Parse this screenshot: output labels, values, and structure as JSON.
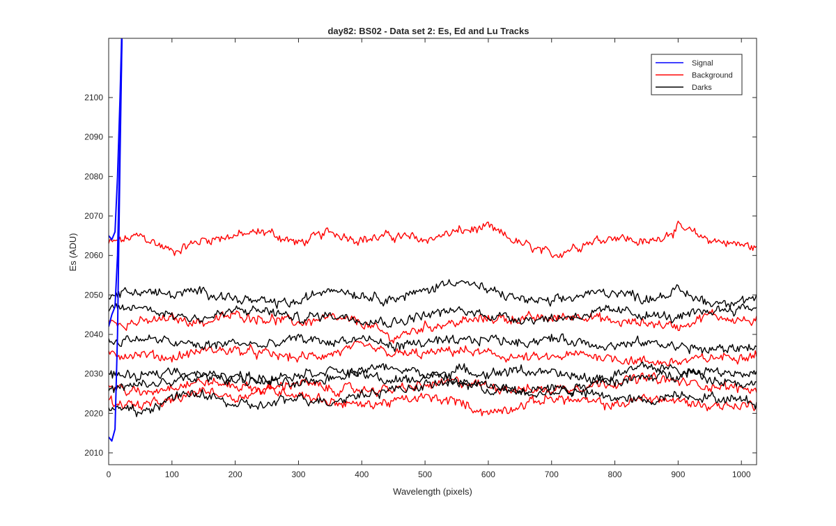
{
  "chart_data": {
    "type": "line",
    "title": "day82: BS02 - Data set 2: Es, Ed and Lu Tracks",
    "xlabel": "Wavelength (pixels)",
    "ylabel": "Es (ADU)",
    "xlim": [
      0,
      1024
    ],
    "ylim": [
      2007,
      2115
    ],
    "xticks": [
      0,
      100,
      200,
      300,
      400,
      500,
      600,
      700,
      800,
      900,
      1000
    ],
    "yticks": [
      2010,
      2020,
      2030,
      2040,
      2050,
      2060,
      2070,
      2080,
      2090,
      2100
    ],
    "grid": false,
    "legend": {
      "position": "top-right",
      "entries": [
        {
          "label": "Signal",
          "color": "#0000ff"
        },
        {
          "label": "Background",
          "color": "#ff0000"
        },
        {
          "label": "Darks",
          "color": "#000000"
        }
      ]
    },
    "series_groups": [
      {
        "name": "Signal",
        "color": "#0000ff",
        "tracks": [
          {
            "x": [
              0,
              5,
              10,
              14,
              18,
              22
            ],
            "y": [
              2014,
              2013,
              2016,
              2040,
              2085,
              2125
            ]
          },
          {
            "x": [
              0,
              5,
              10,
              14,
              18,
              22
            ],
            "y": [
              2042,
              2045,
              2047,
              2060,
              2090,
              2125
            ]
          },
          {
            "x": [
              0,
              5,
              10,
              14,
              18,
              22
            ],
            "y": [
              2065,
              2064,
              2066,
              2080,
              2100,
              2125
            ]
          }
        ]
      },
      {
        "name": "Background",
        "color": "#ff0000",
        "tracks": [
          {
            "x": [
              0,
              50,
              100,
              150,
              200,
              250,
              300,
              350,
              400,
              450,
              500,
              550,
              600,
              650,
              700,
              750,
              800,
              850,
              900,
              950,
              1024
            ],
            "y": [
              2063,
              2065,
              2061,
              2064,
              2065,
              2066,
              2063,
              2066,
              2064,
              2065,
              2064,
              2066,
              2067,
              2063,
              2060,
              2063,
              2065,
              2063,
              2067,
              2064,
              2062
            ]
          },
          {
            "x": [
              0,
              50,
              100,
              150,
              200,
              250,
              300,
              350,
              400,
              450,
              500,
              550,
              600,
              650,
              700,
              750,
              800,
              850,
              900,
              950,
              1024
            ],
            "y": [
              2043,
              2043,
              2044,
              2043,
              2045,
              2044,
              2043,
              2044,
              2043,
              2039,
              2042,
              2043,
              2044,
              2044,
              2044,
              2045,
              2043,
              2043,
              2042,
              2045,
              2043
            ]
          },
          {
            "x": [
              0,
              50,
              100,
              150,
              200,
              250,
              300,
              350,
              400,
              450,
              500,
              550,
              600,
              650,
              700,
              750,
              800,
              850,
              900,
              950,
              1024
            ],
            "y": [
              2035,
              2035,
              2034,
              2036,
              2036,
              2035,
              2034,
              2035,
              2037,
              2035,
              2035,
              2036,
              2035,
              2034,
              2034,
              2035,
              2034,
              2033,
              2033,
              2034,
              2035
            ]
          },
          {
            "x": [
              0,
              50,
              100,
              150,
              200,
              250,
              300,
              350,
              400,
              450,
              500,
              550,
              600,
              650,
              700,
              750,
              800,
              850,
              900,
              950,
              1024
            ],
            "y": [
              2027,
              2025,
              2027,
              2028,
              2027,
              2026,
              2028,
              2026,
              2026,
              2026,
              2027,
              2028,
              2027,
              2026,
              2026,
              2027,
              2028,
              2029,
              2028,
              2027,
              2026
            ]
          },
          {
            "x": [
              0,
              50,
              100,
              150,
              200,
              250,
              300,
              350,
              400,
              450,
              500,
              550,
              600,
              650,
              700,
              750,
              800,
              850,
              900,
              950,
              1024
            ],
            "y": [
              2023,
              2022,
              2023,
              2026,
              2024,
              2026,
              2025,
              2023,
              2022,
              2023,
              2024,
              2023,
              2020,
              2022,
              2024,
              2023,
              2022,
              2024,
              2023,
              2022,
              2022
            ]
          }
        ]
      },
      {
        "name": "Darks",
        "color": "#000000",
        "tracks": [
          {
            "x": [
              0,
              50,
              100,
              150,
              200,
              250,
              300,
              350,
              400,
              450,
              500,
              550,
              600,
              650,
              700,
              750,
              800,
              850,
              900,
              950,
              1024
            ],
            "y": [
              2050,
              2051,
              2050,
              2051,
              2049,
              2048,
              2048,
              2052,
              2050,
              2049,
              2051,
              2054,
              2051,
              2049,
              2048,
              2050,
              2051,
              2049,
              2051,
              2048,
              2049
            ]
          },
          {
            "x": [
              0,
              50,
              100,
              150,
              200,
              250,
              300,
              350,
              400,
              450,
              500,
              550,
              600,
              650,
              700,
              750,
              800,
              850,
              900,
              950,
              1024
            ],
            "y": [
              2046,
              2047,
              2045,
              2044,
              2046,
              2046,
              2044,
              2045,
              2044,
              2043,
              2045,
              2046,
              2045,
              2044,
              2044,
              2045,
              2046,
              2045,
              2044,
              2046,
              2047
            ]
          },
          {
            "x": [
              0,
              50,
              100,
              150,
              200,
              250,
              300,
              350,
              400,
              450,
              500,
              550,
              600,
              650,
              700,
              750,
              800,
              850,
              900,
              950,
              1024
            ],
            "y": [
              2038,
              2039,
              2038,
              2037,
              2038,
              2037,
              2039,
              2038,
              2039,
              2037,
              2038,
              2038,
              2039,
              2038,
              2039,
              2038,
              2037,
              2038,
              2037,
              2036,
              2037
            ]
          },
          {
            "x": [
              0,
              50,
              100,
              150,
              200,
              250,
              300,
              350,
              400,
              450,
              500,
              550,
              600,
              650,
              700,
              750,
              800,
              850,
              900,
              950,
              1024
            ],
            "y": [
              2030,
              2029,
              2031,
              2030,
              2028,
              2029,
              2030,
              2031,
              2030,
              2028,
              2029,
              2031,
              2030,
              2031,
              2030,
              2029,
              2028,
              2029,
              2030,
              2031,
              2030
            ]
          },
          {
            "x": [
              0,
              50,
              100,
              150,
              200,
              250,
              300,
              350,
              400,
              450,
              500,
              550,
              600,
              650,
              700,
              750,
              800,
              850,
              900,
              950,
              1024
            ],
            "y": [
              2026,
              2027,
              2028,
              2029,
              2030,
              2028,
              2027,
              2029,
              2031,
              2032,
              2030,
              2028,
              2027,
              2026,
              2025,
              2027,
              2030,
              2032,
              2031,
              2029,
              2027
            ]
          },
          {
            "x": [
              0,
              50,
              100,
              150,
              200,
              250,
              300,
              350,
              400,
              450,
              500,
              550,
              600,
              650,
              700,
              750,
              800,
              850,
              900,
              950,
              1024
            ],
            "y": [
              2022,
              2020,
              2024,
              2025,
              2022,
              2022,
              2024,
              2023,
              2025,
              2026,
              2027,
              2028,
              2026,
              2025,
              2027,
              2025,
              2024,
              2023,
              2025,
              2024,
              2023
            ]
          }
        ]
      }
    ]
  }
}
